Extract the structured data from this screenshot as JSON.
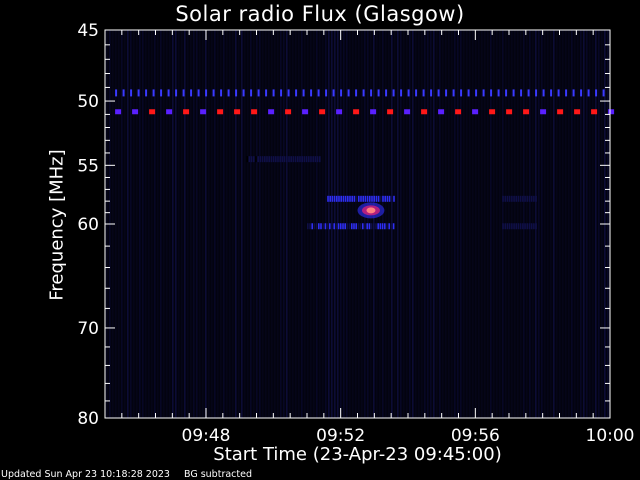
{
  "title": "Solar radio Flux (Glasgow)",
  "footer": {
    "updated": "Updated Sun Apr 23 10:18:28 2023",
    "note": "BG subtracted"
  },
  "chart_data": {
    "type": "heatmap",
    "title": "Solar radio Flux (Glasgow)",
    "xlabel": "Start Time (23-Apr-23 09:45:00)",
    "ylabel": "Frequency [MHz]",
    "x_unit": "minutes after 09:45",
    "xlim": [
      0,
      15
    ],
    "x_ticks": [
      {
        "value": 3,
        "label": "09:48"
      },
      {
        "value": 7,
        "label": "09:52"
      },
      {
        "value": 11,
        "label": "09:56"
      },
      {
        "value": 15,
        "label": "10:00"
      }
    ],
    "yscale": "log",
    "ylim": [
      45,
      80
    ],
    "y_reversed": true,
    "y_ticks": [
      45,
      50,
      55,
      60,
      70,
      80
    ],
    "colormap": [
      "#000000",
      "#10104a",
      "#3030ff",
      "#b02080",
      "#ff2020"
    ],
    "features": [
      {
        "kind": "interference-band",
        "freq_mhz": 49.4,
        "x_range": [
          0.3,
          14.8
        ],
        "intensity": 0.35,
        "dash": "fine"
      },
      {
        "kind": "interference-band",
        "freq_mhz": 50.8,
        "x_range": [
          0.3,
          15
        ],
        "intensity": 0.85,
        "dash": "coarse",
        "color_alternates": true
      },
      {
        "kind": "emission",
        "x_range": [
          6.6,
          8.6
        ],
        "freq_mhz": 57.8,
        "intensity": 0.5
      },
      {
        "kind": "emission",
        "x_range": [
          6.0,
          8.6
        ],
        "freq_mhz": 60.2,
        "intensity": 0.45
      },
      {
        "kind": "emission",
        "x_range": [
          7.5,
          8.3
        ],
        "freq_mhz": 58.8,
        "intensity": 0.95
      },
      {
        "kind": "emission",
        "x_range": [
          4.2,
          6.4
        ],
        "freq_mhz": 54.5,
        "intensity": 0.2
      },
      {
        "kind": "emission",
        "x_range": [
          11.8,
          12.8
        ],
        "freq_mhz": 57.8,
        "intensity": 0.25
      },
      {
        "kind": "emission",
        "x_range": [
          11.8,
          12.8
        ],
        "freq_mhz": 60.2,
        "intensity": 0.22
      }
    ]
  }
}
